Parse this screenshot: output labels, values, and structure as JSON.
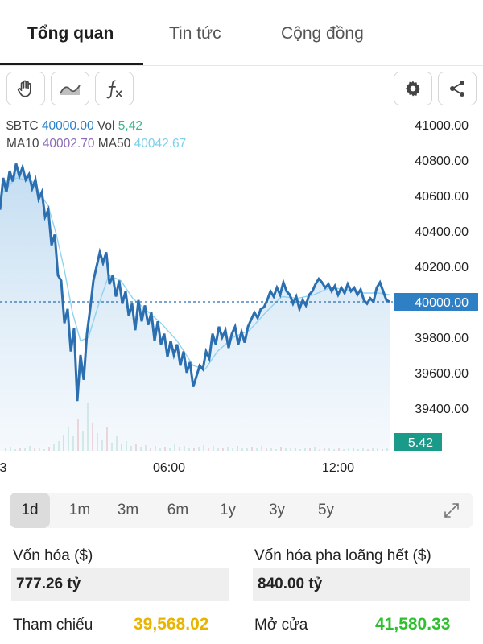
{
  "tabs": [
    {
      "label": "Tổng quan",
      "active": true
    },
    {
      "label": "Tin tức",
      "active": false
    },
    {
      "label": "Cộng đồng",
      "active": false
    }
  ],
  "toolbar": {
    "left_icons": [
      "hand-icon",
      "area-chart-icon",
      "function-icon"
    ],
    "right_icons": [
      "gear-icon",
      "share-icon"
    ]
  },
  "legend": {
    "symbol": "$BTC",
    "price": "40000.00",
    "vol_label": "Vol",
    "vol": "5,42",
    "ma10_label": "MA10",
    "ma10": "40002.70",
    "ma50_label": "MA50",
    "ma50": "40042.67"
  },
  "chart_data": {
    "type": "line",
    "y_ticks": [
      "41000.00",
      "40800.00",
      "40600.00",
      "40400.00",
      "40200.00",
      "39800.00",
      "39600.00",
      "39400.00"
    ],
    "ylim": [
      39300,
      41050
    ],
    "x_tick_labels": [
      "3",
      "06:00",
      "12:00"
    ],
    "current_price_label": "40000.00",
    "volume_label": "5.42",
    "price_series": [
      [
        0,
        40520
      ],
      [
        4,
        40700
      ],
      [
        8,
        40620
      ],
      [
        12,
        40740
      ],
      [
        16,
        40680
      ],
      [
        20,
        40780
      ],
      [
        24,
        40710
      ],
      [
        28,
        40760
      ],
      [
        32,
        40690
      ],
      [
        36,
        40720
      ],
      [
        40,
        40640
      ],
      [
        44,
        40690
      ],
      [
        48,
        40580
      ],
      [
        52,
        40620
      ],
      [
        56,
        40480
      ],
      [
        60,
        40520
      ],
      [
        64,
        40320
      ],
      [
        68,
        40380
      ],
      [
        72,
        40150
      ],
      [
        76,
        40120
      ],
      [
        80,
        39880
      ],
      [
        84,
        39960
      ],
      [
        88,
        39720
      ],
      [
        92,
        39850
      ],
      [
        96,
        39440
      ],
      [
        100,
        39700
      ],
      [
        104,
        39560
      ],
      [
        108,
        39820
      ],
      [
        112,
        39960
      ],
      [
        116,
        40120
      ],
      [
        120,
        40200
      ],
      [
        124,
        40280
      ],
      [
        128,
        40220
      ],
      [
        132,
        40280
      ],
      [
        136,
        40100
      ],
      [
        140,
        40150
      ],
      [
        144,
        40030
      ],
      [
        148,
        40120
      ],
      [
        152,
        39990
      ],
      [
        156,
        40060
      ],
      [
        160,
        39920
      ],
      [
        164,
        39990
      ],
      [
        168,
        39840
      ],
      [
        172,
        40010
      ],
      [
        176,
        39890
      ],
      [
        180,
        39980
      ],
      [
        184,
        39870
      ],
      [
        188,
        39940
      ],
      [
        192,
        39780
      ],
      [
        196,
        39890
      ],
      [
        200,
        39760
      ],
      [
        204,
        39820
      ],
      [
        208,
        39690
      ],
      [
        212,
        39780
      ],
      [
        216,
        39700
      ],
      [
        220,
        39760
      ],
      [
        224,
        39640
      ],
      [
        228,
        39720
      ],
      [
        232,
        39600
      ],
      [
        236,
        39660
      ],
      [
        240,
        39520
      ],
      [
        244,
        39580
      ],
      [
        248,
        39640
      ],
      [
        252,
        39620
      ],
      [
        256,
        39720
      ],
      [
        260,
        39680
      ],
      [
        264,
        39820
      ],
      [
        268,
        39760
      ],
      [
        272,
        39860
      ],
      [
        276,
        39800
      ],
      [
        280,
        39840
      ],
      [
        284,
        39740
      ],
      [
        288,
        39820
      ],
      [
        292,
        39860
      ],
      [
        296,
        39760
      ],
      [
        300,
        39830
      ],
      [
        304,
        39770
      ],
      [
        308,
        39860
      ],
      [
        312,
        39900
      ],
      [
        316,
        39940
      ],
      [
        320,
        39910
      ],
      [
        324,
        39960
      ],
      [
        328,
        39970
      ],
      [
        332,
        40010
      ],
      [
        336,
        40060
      ],
      [
        340,
        40030
      ],
      [
        344,
        40080
      ],
      [
        348,
        40040
      ],
      [
        352,
        40110
      ],
      [
        356,
        40060
      ],
      [
        360,
        40040
      ],
      [
        364,
        39990
      ],
      [
        368,
        40030
      ],
      [
        372,
        39960
      ],
      [
        376,
        40010
      ],
      [
        380,
        39980
      ],
      [
        384,
        40040
      ],
      [
        388,
        40060
      ],
      [
        392,
        40100
      ],
      [
        396,
        40130
      ],
      [
        400,
        40110
      ],
      [
        404,
        40080
      ],
      [
        408,
        40100
      ],
      [
        412,
        40060
      ],
      [
        416,
        40090
      ],
      [
        420,
        40040
      ],
      [
        424,
        40080
      ],
      [
        428,
        40050
      ],
      [
        432,
        40100
      ],
      [
        436,
        40060
      ],
      [
        440,
        40080
      ],
      [
        444,
        40040
      ],
      [
        448,
        40070
      ],
      [
        452,
        40010
      ],
      [
        456,
        39990
      ],
      [
        460,
        40020
      ],
      [
        464,
        40000
      ],
      [
        468,
        40080
      ],
      [
        472,
        40110
      ],
      [
        476,
        40060
      ],
      [
        480,
        40010
      ],
      [
        484,
        40000
      ]
    ],
    "ma_series": [
      [
        0,
        40600
      ],
      [
        20,
        40700
      ],
      [
        40,
        40680
      ],
      [
        60,
        40540
      ],
      [
        70,
        40380
      ],
      [
        80,
        40180
      ],
      [
        90,
        39940
      ],
      [
        100,
        39780
      ],
      [
        110,
        39800
      ],
      [
        120,
        39950
      ],
      [
        135,
        40150
      ],
      [
        150,
        40120
      ],
      [
        165,
        40020
      ],
      [
        180,
        39960
      ],
      [
        200,
        39880
      ],
      [
        220,
        39780
      ],
      [
        240,
        39640
      ],
      [
        255,
        39620
      ],
      [
        270,
        39720
      ],
      [
        290,
        39800
      ],
      [
        310,
        39840
      ],
      [
        330,
        39940
      ],
      [
        350,
        40030
      ],
      [
        370,
        40020
      ],
      [
        390,
        40040
      ],
      [
        410,
        40080
      ],
      [
        430,
        40070
      ],
      [
        450,
        40050
      ],
      [
        470,
        40050
      ],
      [
        484,
        40040
      ]
    ]
  },
  "periods": [
    {
      "label": "1d",
      "active": true
    },
    {
      "label": "1m",
      "active": false
    },
    {
      "label": "3m",
      "active": false
    },
    {
      "label": "6m",
      "active": false
    },
    {
      "label": "1y",
      "active": false
    },
    {
      "label": "3y",
      "active": false
    },
    {
      "label": "5y",
      "active": false
    }
  ],
  "stats": {
    "market_cap_label": "Vốn hóa ($)",
    "market_cap_value": "777.26 tỷ",
    "fdv_label": "Vốn hóa pha loãng hết ($)",
    "fdv_value": "840.00 tỷ",
    "reference_label": "Tham chiếu",
    "reference_value": "39,568.02",
    "open_label": "Mở cửa",
    "open_value": "41,580.33"
  },
  "colors": {
    "line": "#2c6fb0",
    "ma": "#8fd3f0",
    "fill": "#dcebf7",
    "price_tag": "#2f7fc4",
    "volume_tag": "#1a9b8a",
    "reference_value": "#e9b400",
    "open_value": "#2fc02f"
  }
}
